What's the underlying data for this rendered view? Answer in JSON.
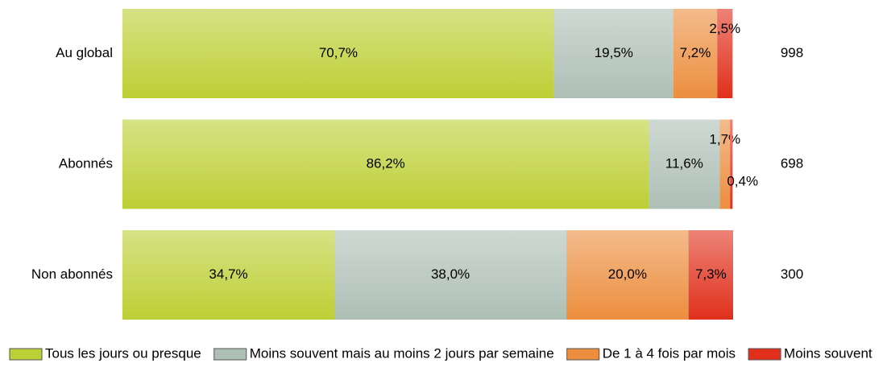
{
  "chart_data": {
    "type": "stacked-bar-horizontal",
    "categories": [
      "Au global",
      "Abonnés",
      "Non abonnés"
    ],
    "xlim": [
      0,
      100
    ],
    "series": [
      {
        "name": "Tous les jours ou presque",
        "color": "#bccf34",
        "values": [
          70.7,
          86.2,
          34.7
        ],
        "value_labels": [
          "70,7%",
          "86,2%",
          "34,7%"
        ]
      },
      {
        "name": "Moins souvent mais au moins 2 jours par semaine",
        "color": "#aebfb6",
        "values": [
          19.5,
          11.6,
          38.0
        ],
        "value_labels": [
          "19,5%",
          "11,6%",
          "38,0%"
        ]
      },
      {
        "name": "De 1 à 4 fois par mois",
        "color": "#ec8e3e",
        "values": [
          7.2,
          1.7,
          20.0
        ],
        "value_labels": [
          "7,2%",
          "1,7%",
          "20,0%"
        ]
      },
      {
        "name": "Moins souvent",
        "color": "#e0301c",
        "values": [
          2.5,
          0.4,
          7.3
        ],
        "value_labels": [
          "2,5%",
          "0,4%",
          "7,3%"
        ]
      }
    ],
    "counts": [
      "998",
      "698",
      "300"
    ]
  }
}
